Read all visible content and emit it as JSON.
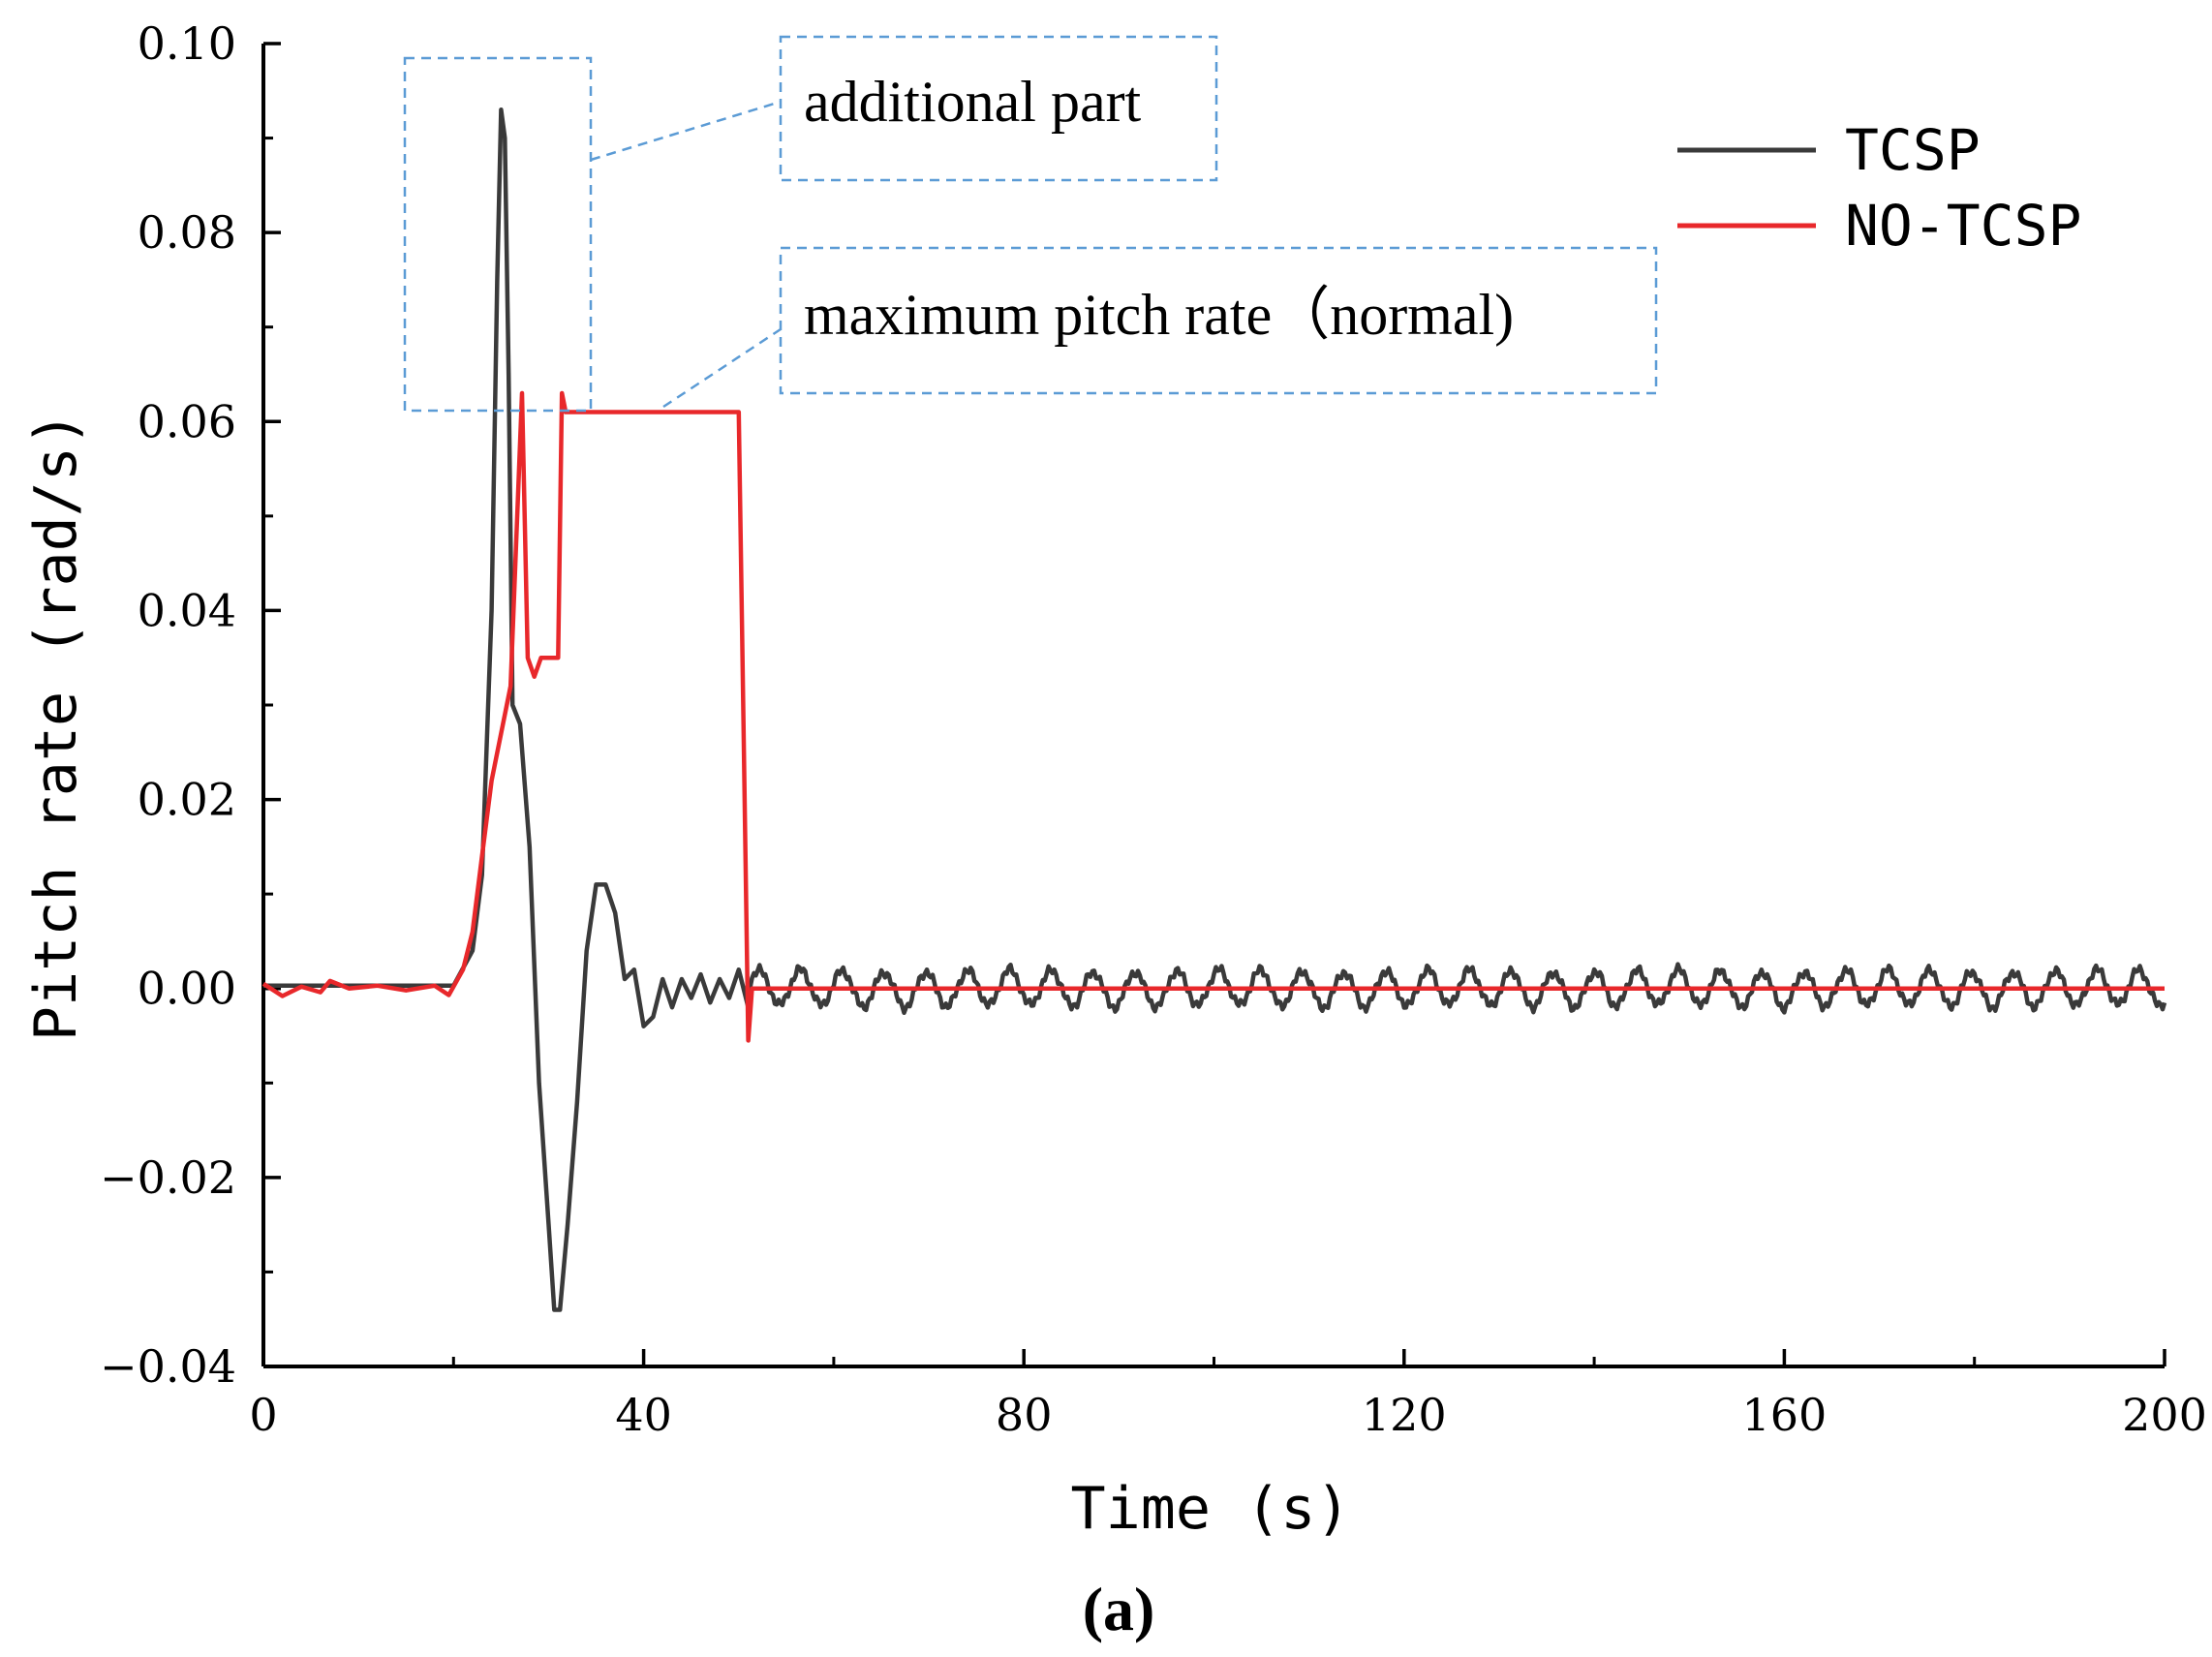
{
  "chart_data": {
    "type": "line",
    "title": "",
    "caption": "(a)",
    "xlabel": "Time (s)",
    "ylabel": "Pitch rate (rad/s)",
    "xlim": [
      0,
      200
    ],
    "ylim": [
      -0.04,
      0.1
    ],
    "x_ticks": [
      0,
      40,
      80,
      120,
      160,
      200
    ],
    "x_tick_labels": [
      "0",
      "40",
      "80",
      "120",
      "160",
      "200"
    ],
    "y_ticks": [
      -0.04,
      -0.02,
      0.0,
      0.02,
      0.04,
      0.06,
      0.08,
      0.1
    ],
    "y_tick_labels": [
      "−0.04",
      "−0.02",
      "0.00",
      "0.02",
      "0.04",
      "0.06",
      "0.08",
      "0.10"
    ],
    "grid": false,
    "legend_position": "top-right",
    "series": [
      {
        "name": "TCSP",
        "color": "#3a3a3a",
        "points": [
          [
            0,
            0.0003
          ],
          [
            20,
            0.0003
          ],
          [
            22,
            0.004
          ],
          [
            23,
            0.012
          ],
          [
            24,
            0.04
          ],
          [
            24.6,
            0.075
          ],
          [
            25.0,
            0.093
          ],
          [
            25.4,
            0.09
          ],
          [
            25.8,
            0.065
          ],
          [
            26.2,
            0.03
          ],
          [
            27,
            0.028
          ],
          [
            28,
            0.015
          ],
          [
            29,
            -0.01
          ],
          [
            30,
            -0.025
          ],
          [
            30.6,
            -0.034
          ],
          [
            31.2,
            -0.034
          ],
          [
            32,
            -0.025
          ],
          [
            33,
            -0.012
          ],
          [
            34,
            0.004
          ],
          [
            35,
            0.011
          ],
          [
            36,
            0.011
          ],
          [
            37,
            0.008
          ],
          [
            38,
            0.001
          ],
          [
            39,
            0.002
          ],
          [
            40,
            -0.004
          ],
          [
            41,
            -0.003
          ],
          [
            42,
            0.001
          ],
          [
            43,
            -0.002
          ],
          [
            44,
            0.001
          ],
          [
            45,
            -0.001
          ],
          [
            46,
            0.0015
          ],
          [
            47,
            -0.0015
          ],
          [
            48,
            0.001
          ],
          [
            49,
            -0.001
          ],
          [
            50,
            0.002
          ],
          [
            51,
            -0.002
          ]
        ],
        "oscillation_after_s": 51,
        "oscillation_amplitude": 0.0022,
        "oscillation_period_s": 4.4,
        "oscillation_end_s": 200
      },
      {
        "name": "NO-TCSP",
        "color": "#e8282b",
        "points": [
          [
            0,
            0.0005
          ],
          [
            2,
            -0.0008
          ],
          [
            4,
            0.0002
          ],
          [
            6,
            -0.0004
          ],
          [
            7,
            0.0008
          ],
          [
            9,
            0.0
          ],
          [
            12,
            0.0003
          ],
          [
            15,
            -0.0002
          ],
          [
            18,
            0.0003
          ],
          [
            19.5,
            -0.0007
          ],
          [
            21,
            0.002
          ],
          [
            22,
            0.006
          ],
          [
            23,
            0.014
          ],
          [
            24,
            0.022
          ],
          [
            25,
            0.027
          ],
          [
            26,
            0.032
          ],
          [
            27.2,
            0.063
          ],
          [
            27.8,
            0.035
          ],
          [
            28.5,
            0.033
          ],
          [
            29.2,
            0.035
          ],
          [
            31,
            0.035
          ],
          [
            31.4,
            0.063
          ],
          [
            31.8,
            0.061
          ],
          [
            50,
            0.061
          ],
          [
            50.5,
            0.028
          ],
          [
            51,
            -0.0055
          ],
          [
            51.4,
            0.0
          ],
          [
            200,
            0.0
          ]
        ]
      }
    ],
    "annotations": [
      {
        "text": "additional part",
        "box": "dashed",
        "color": "#5b9bd5"
      },
      {
        "text": "maximum pitch rate（normal)",
        "box": "dashed",
        "color": "#5b9bd5"
      }
    ]
  }
}
